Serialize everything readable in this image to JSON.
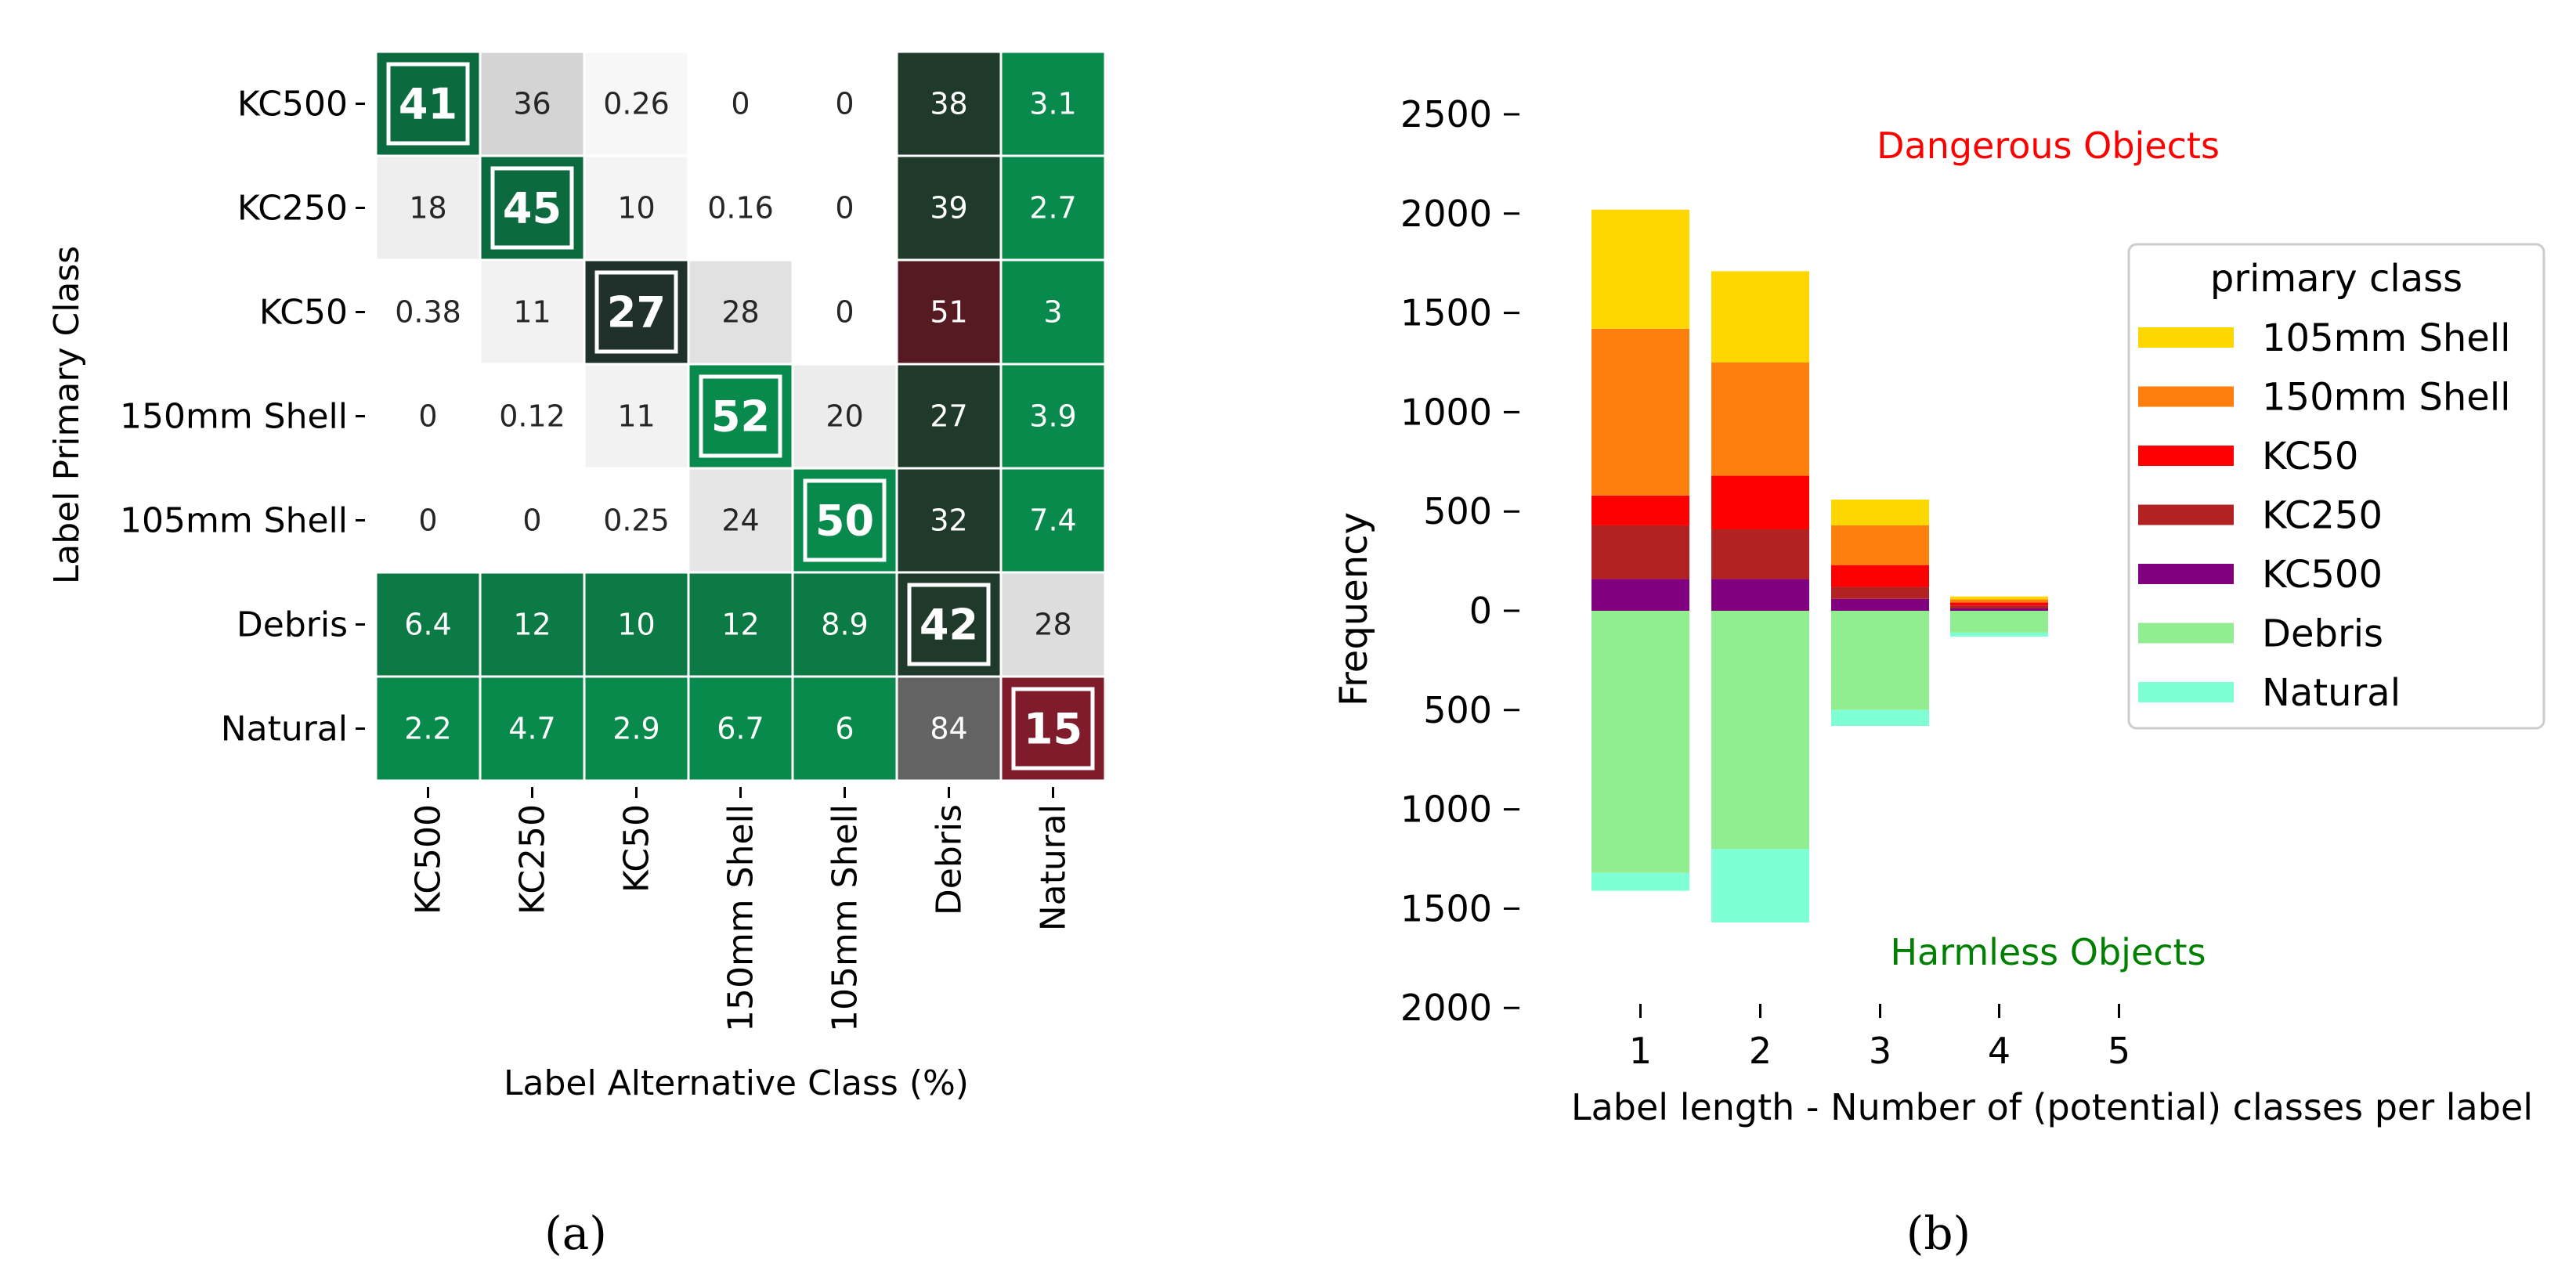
{
  "chart_data": [
    {
      "type": "heatmap",
      "panel_label": "(a)",
      "ylabel": "Label Primary Class",
      "xlabel": "Label Alternative Class (%)",
      "rows": [
        "KC500",
        "KC250",
        "KC50",
        "150mm Shell",
        "105mm Shell",
        "Debris ",
        "Natural"
      ],
      "cols": [
        "KC500",
        "KC250",
        "KC50",
        "150mm Shell",
        "105mm Shell",
        "Debris",
        "Natural"
      ],
      "cells": [
        [
          "41",
          "36",
          "0.26",
          "0",
          "0",
          "38",
          "3.1"
        ],
        [
          "18",
          "45",
          "10",
          "0.16",
          "0",
          "39",
          "2.7"
        ],
        [
          "0.38",
          "11",
          "27",
          "28",
          "0",
          "51",
          "3"
        ],
        [
          "0",
          "0.12",
          "11",
          "52",
          "20",
          "27",
          "3.9"
        ],
        [
          "0",
          "0",
          "0.25",
          "24",
          "50",
          "32",
          "7.4"
        ],
        [
          "6.4",
          "12",
          "10",
          "12",
          "8.9",
          "42",
          "28"
        ],
        [
          "2.2",
          "4.7",
          "2.9",
          "6.7",
          "6",
          "84",
          "15"
        ]
      ],
      "cell_colors": [
        [
          "#0b6b3e",
          "#d4d4d4",
          "#f7f7f7",
          "#ffffff",
          "#ffffff",
          "#1f3a2b",
          "#078a4b"
        ],
        [
          "#eeeeee",
          "#0b6b3e",
          "#f4f4f4",
          "#ffffff",
          "#ffffff",
          "#1f3a2b",
          "#078a4b"
        ],
        [
          "#ffffff",
          "#f2f2f2",
          "#20302a",
          "#e1e1e1",
          "#ffffff",
          "#561b22",
          "#078a4b"
        ],
        [
          "#ffffff",
          "#ffffff",
          "#f2f2f2",
          "#078a4b",
          "#ececec",
          "#1f3a2b",
          "#078a4b"
        ],
        [
          "#ffffff",
          "#ffffff",
          "#ffffff",
          "#e6e6e6",
          "#078a4b",
          "#1f3a2b",
          "#078a4b"
        ],
        [
          "#0c7a44",
          "#0b7a44",
          "#0b7a44",
          "#0b7a44",
          "#0b7a44",
          "#1f3a2b",
          "#dddddd"
        ],
        [
          "#078a4b",
          "#078a4b",
          "#078a4b",
          "#078a4b",
          "#078a4b",
          "#636363",
          "#7f1b2a"
        ]
      ]
    },
    {
      "type": "bar",
      "stacked": true,
      "panel_label": "(b)",
      "xlabel": "Label length - Number of (potential) classes per label",
      "ylabel": "Frequency",
      "categories": [
        "1",
        "2",
        "3",
        "4",
        "5"
      ],
      "ylim": [
        -2000,
        2500
      ],
      "yticks": [
        2500,
        2000,
        1500,
        1000,
        500,
        0,
        -500,
        -1000,
        -1500,
        -2000
      ],
      "ytick_labels": [
        "2500",
        "2000",
        "1500",
        "1000",
        "500",
        "0",
        "500",
        "1000",
        "1500",
        "2000"
      ],
      "annotations": {
        "top": {
          "text": "Dangerous Objects",
          "color": "#ff0000"
        },
        "bottom": {
          "text": "Harmless Objects",
          "color": "#008000"
        }
      },
      "legend": {
        "title": "primary class",
        "placement": "right"
      },
      "positive_series": [
        {
          "name": "KC500",
          "color": "#800080",
          "values": [
            160,
            160,
            60,
            12,
            0
          ]
        },
        {
          "name": "KC250",
          "color": "#b22222",
          "values": [
            270,
            250,
            60,
            15,
            0
          ]
        },
        {
          "name": "KC50",
          "color": "#ff0000",
          "values": [
            150,
            270,
            110,
            15,
            0
          ]
        },
        {
          "name": "150mm Shell",
          "color": "#ff7f0e",
          "values": [
            840,
            570,
            200,
            15,
            0
          ]
        },
        {
          "name": "105mm Shell",
          "color": "#ffd700",
          "values": [
            600,
            460,
            130,
            15,
            0
          ]
        }
      ],
      "negative_series": [
        {
          "name": "Debris",
          "color": "#90ee90",
          "values": [
            1320,
            1200,
            500,
            110,
            0
          ]
        },
        {
          "name": "Natural",
          "color": "#7fffd4",
          "values": [
            90,
            370,
            80,
            20,
            0
          ]
        }
      ],
      "legend_order": [
        "105mm Shell",
        "150mm Shell",
        "KC50",
        "KC250",
        "KC500",
        "Debris",
        "Natural"
      ]
    }
  ]
}
